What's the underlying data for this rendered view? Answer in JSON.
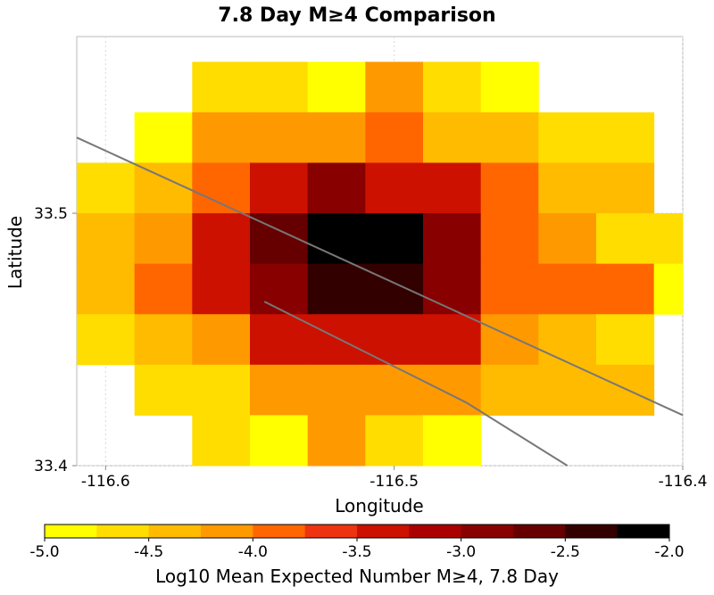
{
  "chart_data": {
    "type": "heatmap",
    "title": "7.8 Day M≥4 Comparison",
    "xlabel": "Longitude",
    "ylabel": "Latitude",
    "xlim": [
      -116.61,
      -116.4
    ],
    "ylim": [
      33.4,
      33.57
    ],
    "x_ticks": [
      {
        "value": -116.6,
        "label": "-116.6"
      },
      {
        "value": -116.5,
        "label": "-116.5"
      },
      {
        "value": -116.4,
        "label": "-116.4"
      }
    ],
    "y_ticks": [
      {
        "value": 33.5,
        "label": "33.5"
      },
      {
        "value": 33.4,
        "label": "33.4"
      }
    ],
    "grid": true,
    "cell_size": 0.02,
    "x_centers": [
      -116.6,
      -116.58,
      -116.56,
      -116.54,
      -116.52,
      -116.5,
      -116.48,
      -116.46,
      -116.44,
      -116.42,
      -116.4
    ],
    "y_centers": [
      33.55,
      33.53,
      33.51,
      33.49,
      33.47,
      33.45,
      33.43,
      33.41
    ],
    "values": [
      [
        null,
        null,
        -4.6,
        -4.6,
        -4.9,
        -4.2,
        -4.7,
        -4.9,
        null,
        null,
        null
      ],
      [
        null,
        -4.9,
        -4.2,
        -4.2,
        -4.2,
        -3.8,
        -4.4,
        -4.4,
        -4.6,
        -4.6,
        null
      ],
      [
        -4.7,
        -4.4,
        -3.8,
        -3.3,
        -2.9,
        -3.3,
        -3.3,
        -3.8,
        -4.4,
        -4.4,
        null
      ],
      [
        -4.4,
        -4.2,
        -3.5,
        -2.7,
        -2.0,
        -2.0,
        -2.9,
        -3.8,
        -4.2,
        -4.7,
        -4.7
      ],
      [
        -4.4,
        -3.8,
        -3.5,
        -2.9,
        -2.4,
        -2.4,
        -2.9,
        -3.8,
        -3.8,
        -3.8,
        -4.9
      ],
      [
        -4.7,
        -4.4,
        -4.2,
        -3.5,
        -3.5,
        -3.3,
        -3.5,
        -4.2,
        -4.4,
        -4.6,
        null
      ],
      [
        null,
        -4.6,
        -4.6,
        -4.2,
        -4.2,
        -4.2,
        -4.2,
        -4.4,
        -4.4,
        -4.4,
        null
      ],
      [
        null,
        null,
        -4.6,
        -4.9,
        -4.2,
        -4.6,
        -4.9,
        null,
        null,
        null,
        null
      ]
    ],
    "faults": [
      [
        [
          -116.61,
          33.53
        ],
        [
          -116.4,
          33.42
        ]
      ],
      [
        [
          -116.545,
          33.465
        ],
        [
          -116.475,
          33.425
        ],
        [
          -116.44,
          33.4
        ]
      ]
    ],
    "colorbar": {
      "min": -5.0,
      "max": -2.0,
      "label": "Log10 Mean Expected Number M≥4, 7.8 Day",
      "ticks": [
        {
          "value": -5.0,
          "label": "-5.0"
        },
        {
          "value": -4.5,
          "label": "-4.5"
        },
        {
          "value": -4.0,
          "label": "-4.0"
        },
        {
          "value": -3.5,
          "label": "-3.5"
        },
        {
          "value": -3.0,
          "label": "-3.0"
        },
        {
          "value": -2.5,
          "label": "-2.5"
        },
        {
          "value": -2.0,
          "label": "-2.0"
        }
      ],
      "colors": [
        "#ffff00",
        "#ffdd00",
        "#ffbb00",
        "#ff9900",
        "#ff6600",
        "#ee3311",
        "#cc1100",
        "#aa0000",
        "#880000",
        "#660000",
        "#330000",
        "#000000"
      ]
    }
  }
}
